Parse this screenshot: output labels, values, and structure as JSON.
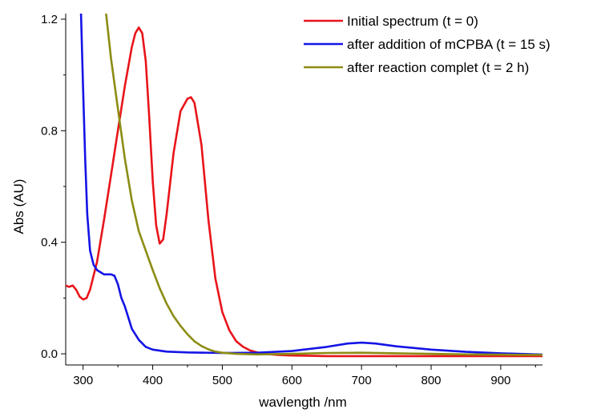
{
  "chart_data": {
    "type": "line",
    "title": "",
    "xlabel": "wavlength /nm",
    "ylabel": "Abs (AU)",
    "xlim": [
      275,
      960
    ],
    "ylim": [
      -0.04,
      1.22
    ],
    "xticks": [
      300,
      400,
      500,
      600,
      700,
      800,
      900
    ],
    "yticks": [
      0.0,
      0.4,
      0.8,
      1.2
    ],
    "xtick_labels": [
      "300",
      "400",
      "500",
      "600",
      "700",
      "800",
      "900"
    ],
    "ytick_labels": [
      "0.0",
      "0.4",
      "0.8",
      "1.2"
    ],
    "grid": false,
    "legend_position": "top-right",
    "series": [
      {
        "name": "Initial spectrum (t = 0)",
        "color": "#e8141a",
        "points": [
          [
            275,
            0.245
          ],
          [
            280,
            0.24
          ],
          [
            285,
            0.245
          ],
          [
            290,
            0.23
          ],
          [
            295,
            0.205
          ],
          [
            300,
            0.195
          ],
          [
            305,
            0.2
          ],
          [
            310,
            0.23
          ],
          [
            320,
            0.33
          ],
          [
            330,
            0.48
          ],
          [
            340,
            0.64
          ],
          [
            350,
            0.8
          ],
          [
            360,
            0.96
          ],
          [
            370,
            1.1
          ],
          [
            375,
            1.15
          ],
          [
            380,
            1.17
          ],
          [
            385,
            1.15
          ],
          [
            390,
            1.05
          ],
          [
            395,
            0.85
          ],
          [
            400,
            0.62
          ],
          [
            405,
            0.46
          ],
          [
            410,
            0.395
          ],
          [
            415,
            0.41
          ],
          [
            420,
            0.5
          ],
          [
            430,
            0.72
          ],
          [
            440,
            0.87
          ],
          [
            450,
            0.915
          ],
          [
            455,
            0.92
          ],
          [
            460,
            0.9
          ],
          [
            470,
            0.75
          ],
          [
            480,
            0.48
          ],
          [
            490,
            0.27
          ],
          [
            500,
            0.15
          ],
          [
            510,
            0.085
          ],
          [
            520,
            0.045
          ],
          [
            530,
            0.025
          ],
          [
            540,
            0.012
          ],
          [
            550,
            0.005
          ],
          [
            560,
            0.0
          ],
          [
            580,
            -0.004
          ],
          [
            600,
            -0.006
          ],
          [
            650,
            -0.008
          ],
          [
            700,
            -0.008
          ],
          [
            750,
            -0.008
          ],
          [
            800,
            -0.008
          ],
          [
            850,
            -0.008
          ],
          [
            900,
            -0.008
          ],
          [
            960,
            -0.008
          ]
        ]
      },
      {
        "name": "after addition of mCPBA (t = 15 s)",
        "color": "#1414e6",
        "points": [
          [
            297,
            1.22
          ],
          [
            300,
            0.95
          ],
          [
            303,
            0.7
          ],
          [
            306,
            0.5
          ],
          [
            310,
            0.37
          ],
          [
            315,
            0.32
          ],
          [
            320,
            0.3
          ],
          [
            330,
            0.285
          ],
          [
            340,
            0.285
          ],
          [
            345,
            0.28
          ],
          [
            350,
            0.25
          ],
          [
            355,
            0.2
          ],
          [
            360,
            0.17
          ],
          [
            365,
            0.13
          ],
          [
            370,
            0.09
          ],
          [
            380,
            0.05
          ],
          [
            390,
            0.025
          ],
          [
            400,
            0.015
          ],
          [
            420,
            0.008
          ],
          [
            450,
            0.005
          ],
          [
            500,
            0.003
          ],
          [
            550,
            0.004
          ],
          [
            600,
            0.01
          ],
          [
            650,
            0.025
          ],
          [
            680,
            0.037
          ],
          [
            700,
            0.04
          ],
          [
            720,
            0.037
          ],
          [
            750,
            0.027
          ],
          [
            800,
            0.015
          ],
          [
            850,
            0.007
          ],
          [
            900,
            0.002
          ],
          [
            960,
            -0.003
          ]
        ]
      },
      {
        "name": "after reaction complet (t = 2 h)",
        "color": "#8c8c14",
        "points": [
          [
            333,
            1.22
          ],
          [
            340,
            1.06
          ],
          [
            350,
            0.88
          ],
          [
            360,
            0.7
          ],
          [
            370,
            0.55
          ],
          [
            380,
            0.44
          ],
          [
            390,
            0.37
          ],
          [
            400,
            0.3
          ],
          [
            410,
            0.235
          ],
          [
            420,
            0.18
          ],
          [
            430,
            0.135
          ],
          [
            440,
            0.1
          ],
          [
            450,
            0.07
          ],
          [
            460,
            0.045
          ],
          [
            470,
            0.028
          ],
          [
            480,
            0.016
          ],
          [
            490,
            0.008
          ],
          [
            500,
            0.004
          ],
          [
            520,
            0.0
          ],
          [
            550,
            -0.002
          ],
          [
            600,
            0.0
          ],
          [
            650,
            0.003
          ],
          [
            700,
            0.004
          ],
          [
            750,
            0.002
          ],
          [
            800,
            0.0
          ],
          [
            850,
            -0.002
          ],
          [
            900,
            -0.003
          ],
          [
            960,
            -0.004
          ]
        ]
      }
    ]
  }
}
